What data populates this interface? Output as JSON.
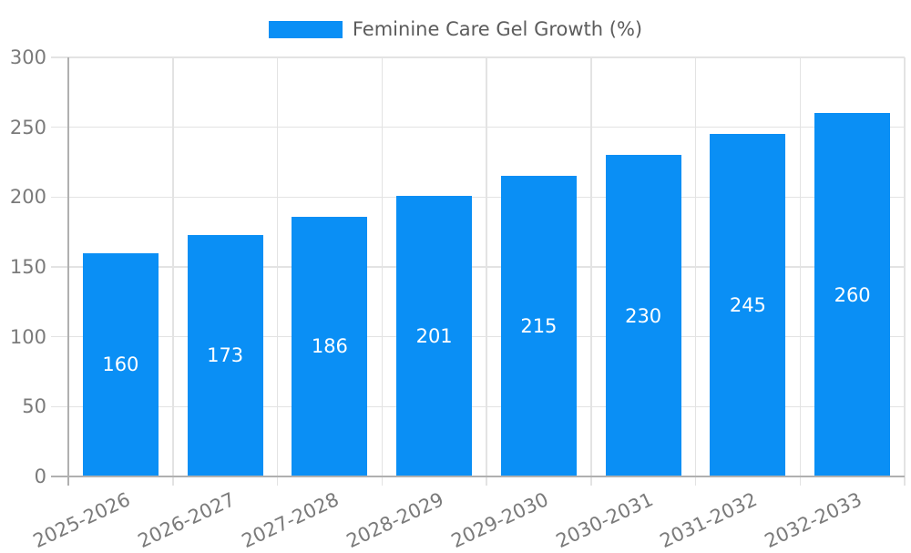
{
  "legend": {
    "items": [
      {
        "label": "Feminine Care Gel Growth (%)",
        "color": "#0a8ff5"
      }
    ]
  },
  "chart_data": {
    "type": "bar",
    "title": "Feminine Care Gel Growth (%)",
    "categories": [
      "2025-2026",
      "2026-2027",
      "2027-2028",
      "2028-2029",
      "2029-2030",
      "2030-2031",
      "2031-2032",
      "2032-2033"
    ],
    "series": [
      {
        "name": "Feminine Care Gel Growth (%)",
        "values": [
          160,
          173,
          186,
          201,
          215,
          230,
          245,
          260
        ]
      }
    ],
    "value_labels": [
      "160",
      "173",
      "186",
      "201",
      "215",
      "230",
      "245",
      "260"
    ],
    "xlabel": "",
    "ylabel": "",
    "ylim": [
      0,
      300
    ],
    "yticks": [
      0,
      50,
      100,
      150,
      200,
      250,
      300
    ],
    "grid": true,
    "legend_position": "top-center",
    "x_label_rotation_deg": -25,
    "colors": {
      "bar": "#0a8ff5",
      "value_label": "#ffffff",
      "tick_label": "#7a7a7a",
      "legend_text": "#5c5c5c",
      "gridline": "#e3e3e3",
      "axis_line": "#b0b0b0",
      "background": "#ffffff"
    }
  }
}
